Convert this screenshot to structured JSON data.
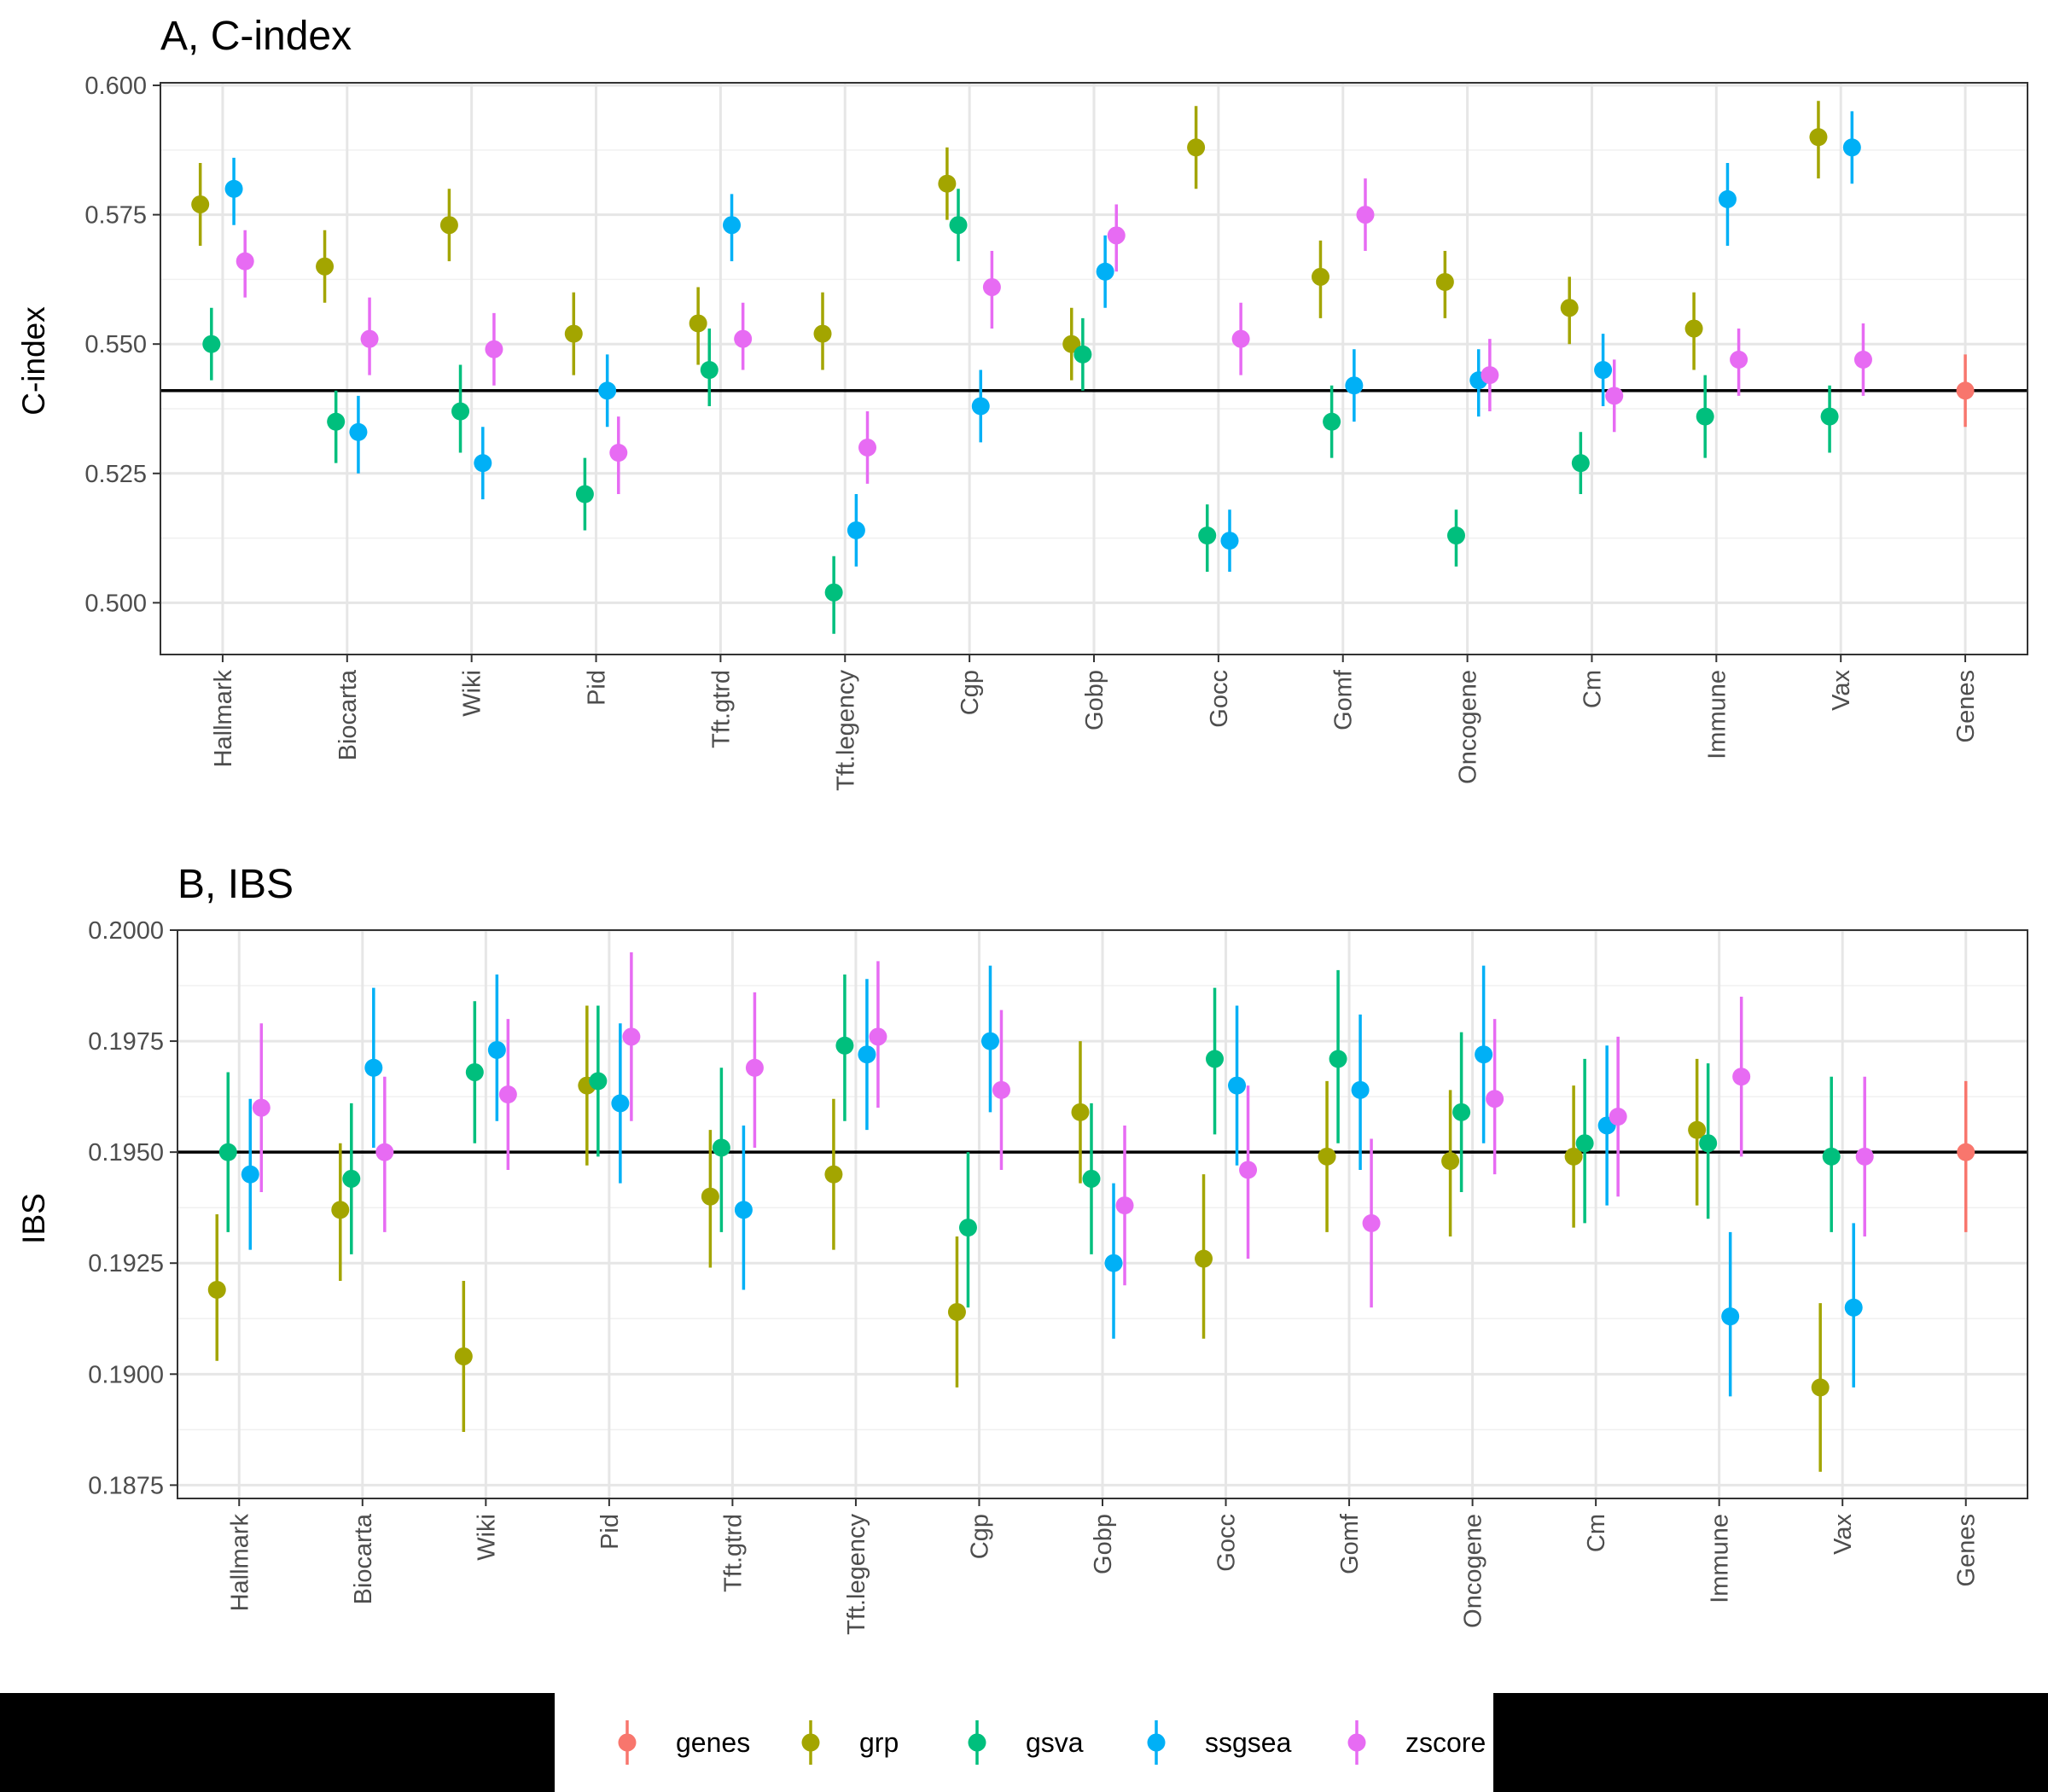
{
  "colors": {
    "genes": "#F8766D",
    "grp": "#A3A500",
    "gsva": "#00BF7D",
    "ssgsea": "#00B0F6",
    "zscore": "#E76BF3"
  },
  "legend": {
    "position": "bottom",
    "items": [
      "genes",
      "grp",
      "gsva",
      "ssgsea",
      "zscore"
    ]
  },
  "chart_data": [
    {
      "type": "scatter",
      "title": "A, C-index",
      "xlabel": "",
      "ylabel": "C-index",
      "ylim": [
        0.49,
        0.6005
      ],
      "yticks": [
        0.5,
        0.525,
        0.55,
        0.575,
        0.6
      ],
      "ytick_labels": [
        "0.500",
        "0.525",
        "0.550",
        "0.575",
        "0.600"
      ],
      "reference_line": 0.541,
      "categories": [
        "Hallmark",
        "Biocarta",
        "Wiki",
        "Pid",
        "Tft.gtrd",
        "Tft.legency",
        "Cgp",
        "Gobp",
        "Gocc",
        "Gomf",
        "Oncogene",
        "Cm",
        "Immune",
        "Vax",
        "Genes"
      ],
      "series": [
        {
          "name": "genes",
          "values": [
            null,
            null,
            null,
            null,
            null,
            null,
            null,
            null,
            null,
            null,
            null,
            null,
            null,
            null,
            0.541
          ],
          "lower": [
            null,
            null,
            null,
            null,
            null,
            null,
            null,
            null,
            null,
            null,
            null,
            null,
            null,
            null,
            0.534
          ],
          "upper": [
            null,
            null,
            null,
            null,
            null,
            null,
            null,
            null,
            null,
            null,
            null,
            null,
            null,
            null,
            0.548
          ]
        },
        {
          "name": "grp",
          "values": [
            0.577,
            0.565,
            0.573,
            0.552,
            0.554,
            0.552,
            0.581,
            0.55,
            0.588,
            0.563,
            0.562,
            0.557,
            0.553,
            0.59,
            null
          ],
          "lower": [
            0.569,
            0.558,
            0.566,
            0.544,
            0.546,
            0.545,
            0.574,
            0.543,
            0.58,
            0.555,
            0.555,
            0.55,
            0.545,
            0.582,
            null
          ],
          "upper": [
            0.585,
            0.572,
            0.58,
            0.56,
            0.561,
            0.56,
            0.588,
            0.557,
            0.596,
            0.57,
            0.568,
            0.563,
            0.56,
            0.597,
            null
          ]
        },
        {
          "name": "gsva",
          "values": [
            0.55,
            0.535,
            0.537,
            0.521,
            0.545,
            0.502,
            0.573,
            0.548,
            0.513,
            0.535,
            0.513,
            0.527,
            0.536,
            0.536,
            null
          ],
          "lower": [
            0.543,
            0.527,
            0.529,
            0.514,
            0.538,
            0.494,
            0.566,
            0.541,
            0.506,
            0.528,
            0.507,
            0.521,
            0.528,
            0.529,
            null
          ],
          "upper": [
            0.557,
            0.541,
            0.546,
            0.528,
            0.553,
            0.509,
            0.58,
            0.555,
            0.519,
            0.542,
            0.518,
            0.533,
            0.544,
            0.542,
            null
          ]
        },
        {
          "name": "ssgsea",
          "values": [
            0.58,
            0.533,
            0.527,
            0.541,
            0.573,
            0.514,
            0.538,
            0.564,
            0.512,
            0.542,
            0.543,
            0.545,
            0.578,
            0.588,
            null
          ],
          "lower": [
            0.573,
            0.525,
            0.52,
            0.534,
            0.566,
            0.507,
            0.531,
            0.557,
            0.506,
            0.535,
            0.536,
            0.538,
            0.569,
            0.581,
            null
          ],
          "upper": [
            0.586,
            0.54,
            0.534,
            0.548,
            0.579,
            0.521,
            0.545,
            0.571,
            0.518,
            0.549,
            0.549,
            0.552,
            0.585,
            0.595,
            null
          ]
        },
        {
          "name": "zscore",
          "values": [
            0.566,
            0.551,
            0.549,
            0.529,
            0.551,
            0.53,
            0.561,
            0.571,
            0.551,
            0.575,
            0.544,
            0.54,
            0.547,
            0.547,
            null
          ],
          "lower": [
            0.559,
            0.544,
            0.542,
            0.521,
            0.545,
            0.523,
            0.553,
            0.564,
            0.544,
            0.568,
            0.537,
            0.533,
            0.54,
            0.54,
            null
          ],
          "upper": [
            0.572,
            0.559,
            0.556,
            0.536,
            0.558,
            0.537,
            0.568,
            0.577,
            0.558,
            0.582,
            0.551,
            0.547,
            0.553,
            0.554,
            null
          ]
        }
      ]
    },
    {
      "type": "scatter",
      "title": "B, IBS",
      "xlabel": "",
      "ylabel": "IBS",
      "ylim": [
        0.1872,
        0.2
      ],
      "yticks": [
        0.1875,
        0.19,
        0.1925,
        0.195,
        0.1975,
        0.2
      ],
      "ytick_labels": [
        "0.1875",
        "0.1900",
        "0.1925",
        "0.1950",
        "0.1975",
        "0.2000"
      ],
      "reference_line": 0.195,
      "categories": [
        "Hallmark",
        "Biocarta",
        "Wiki",
        "Pid",
        "Tft.gtrd",
        "Tft.legency",
        "Cgp",
        "Gobp",
        "Gocc",
        "Gomf",
        "Oncogene",
        "Cm",
        "Immune",
        "Vax",
        "Genes"
      ],
      "series": [
        {
          "name": "genes",
          "values": [
            null,
            null,
            null,
            null,
            null,
            null,
            null,
            null,
            null,
            null,
            null,
            null,
            null,
            null,
            0.195
          ],
          "lower": [
            null,
            null,
            null,
            null,
            null,
            null,
            null,
            null,
            null,
            null,
            null,
            null,
            null,
            null,
            0.1932
          ],
          "upper": [
            null,
            null,
            null,
            null,
            null,
            null,
            null,
            null,
            null,
            null,
            null,
            null,
            null,
            null,
            0.1966
          ]
        },
        {
          "name": "grp",
          "values": [
            0.1919,
            0.1937,
            0.1904,
            0.1965,
            0.194,
            0.1945,
            0.1914,
            0.1959,
            0.1926,
            0.1949,
            0.1948,
            0.1949,
            0.1955,
            0.1897,
            null
          ],
          "lower": [
            0.1903,
            0.1921,
            0.1887,
            0.1947,
            0.1924,
            0.1928,
            0.1897,
            0.1943,
            0.1908,
            0.1932,
            0.1931,
            0.1933,
            0.1938,
            0.1878,
            null
          ],
          "upper": [
            0.1936,
            0.1952,
            0.1921,
            0.1983,
            0.1955,
            0.1962,
            0.1931,
            0.1975,
            0.1945,
            0.1966,
            0.1964,
            0.1965,
            0.1971,
            0.1916,
            null
          ]
        },
        {
          "name": "gsva",
          "values": [
            0.195,
            0.1944,
            0.1968,
            0.1966,
            0.1951,
            0.1974,
            0.1933,
            0.1944,
            0.1971,
            0.1971,
            0.1959,
            0.1952,
            0.1952,
            0.1949,
            null
          ],
          "lower": [
            0.1932,
            0.1927,
            0.1952,
            0.1949,
            0.1932,
            0.1957,
            0.1915,
            0.1927,
            0.1954,
            0.1952,
            0.1941,
            0.1934,
            0.1935,
            0.1932,
            null
          ],
          "upper": [
            0.1968,
            0.1961,
            0.1984,
            0.1983,
            0.1969,
            0.199,
            0.195,
            0.1961,
            0.1987,
            0.1991,
            0.1977,
            0.1971,
            0.197,
            0.1967,
            null
          ]
        },
        {
          "name": "ssgsea",
          "values": [
            0.1945,
            0.1969,
            0.1973,
            0.1961,
            0.1937,
            0.1972,
            0.1975,
            0.1925,
            0.1965,
            0.1964,
            0.1972,
            0.1956,
            0.1913,
            0.1915,
            null
          ],
          "lower": [
            0.1928,
            0.1951,
            0.1957,
            0.1943,
            0.1919,
            0.1955,
            0.1959,
            0.1908,
            0.1947,
            0.1946,
            0.1952,
            0.1938,
            0.1895,
            0.1897,
            null
          ],
          "upper": [
            0.1962,
            0.1987,
            0.199,
            0.1979,
            0.1956,
            0.1989,
            0.1992,
            0.1943,
            0.1983,
            0.1981,
            0.1992,
            0.1974,
            0.1932,
            0.1934,
            null
          ]
        },
        {
          "name": "zscore",
          "values": [
            0.196,
            0.195,
            0.1963,
            0.1976,
            0.1969,
            0.1976,
            0.1964,
            0.1938,
            0.1946,
            0.1934,
            0.1962,
            0.1958,
            0.1967,
            0.1949,
            null
          ],
          "lower": [
            0.1941,
            0.1932,
            0.1946,
            0.1957,
            0.1951,
            0.196,
            0.1946,
            0.192,
            0.1926,
            0.1915,
            0.1945,
            0.194,
            0.1949,
            0.1931,
            null
          ],
          "upper": [
            0.1979,
            0.1967,
            0.198,
            0.1995,
            0.1986,
            0.1993,
            0.1982,
            0.1956,
            0.1965,
            0.1953,
            0.198,
            0.1976,
            0.1985,
            0.1967,
            null
          ]
        }
      ]
    }
  ]
}
